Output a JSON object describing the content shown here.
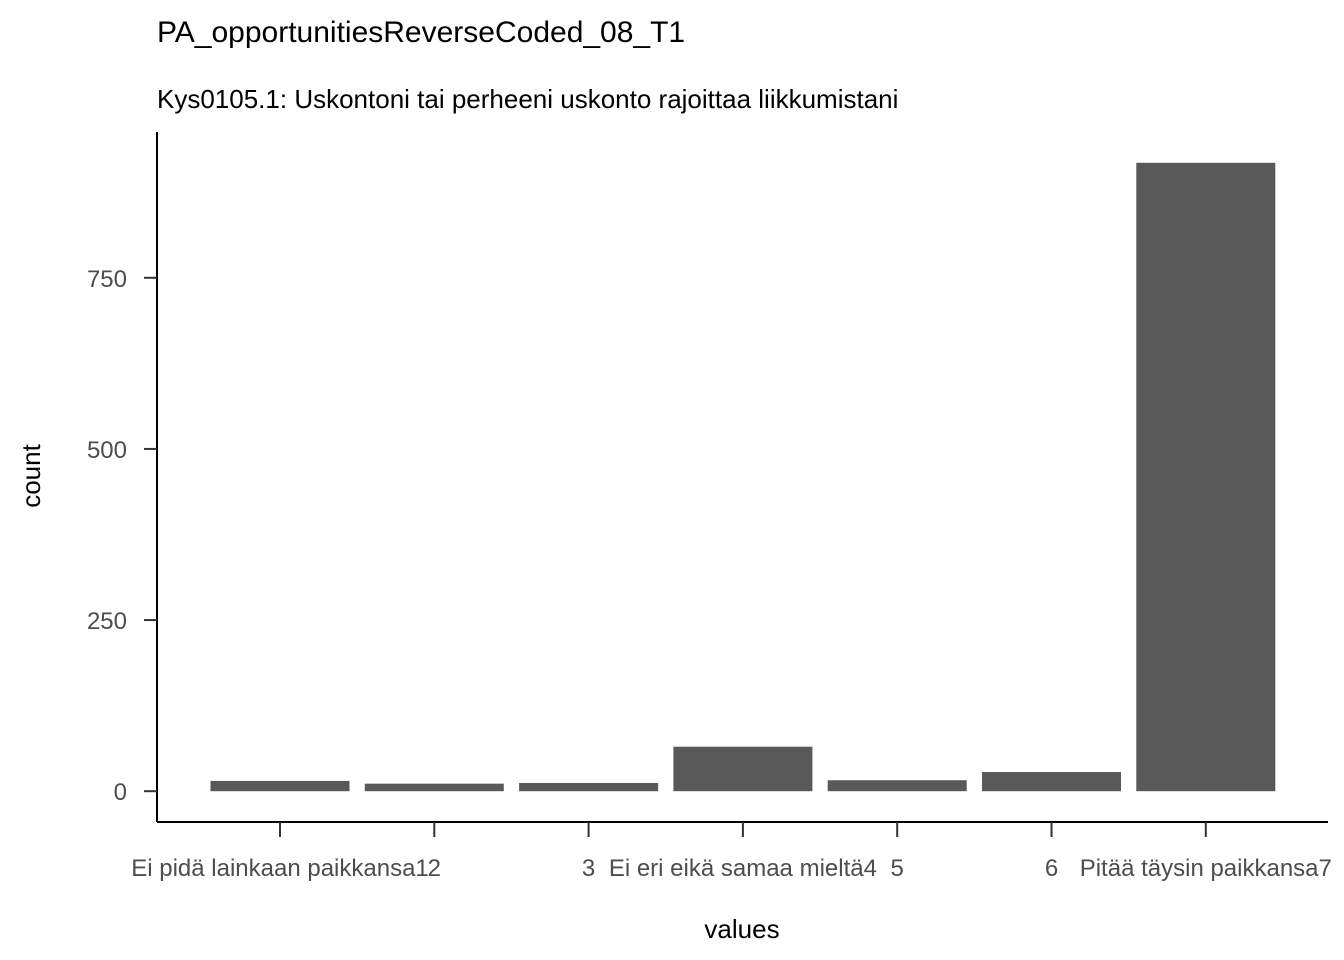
{
  "chart_data": {
    "type": "bar",
    "title": "PA_opportunitiesReverseCoded_08_T1",
    "subtitle": "Kys0105.1: Uskontoni tai perheeni uskonto rajoittaa liikkumistani",
    "xlabel": "values",
    "ylabel": "count",
    "categories": [
      "Ei pidä lainkaan paikkansa1",
      "2",
      "3",
      "Ei eri eikä samaa mieltä4",
      "5",
      "6",
      "Pitää täysin paikkansa7"
    ],
    "x_tick_labels": [
      [
        "Ei pidä lainkaan paikkansa",
        "1"
      ],
      [
        "2"
      ],
      [
        "3"
      ],
      [
        "Ei eri eikä samaa mieltä",
        "4"
      ],
      [
        "5"
      ],
      [
        "6"
      ],
      [
        "Pitää täysin paikkansa",
        "7"
      ]
    ],
    "values": [
      15,
      11,
      12,
      65,
      16,
      28,
      918
    ],
    "ylim": [
      -45,
      963
    ],
    "yticks": [
      0,
      250,
      500,
      750
    ],
    "grid": false,
    "legend": "none"
  }
}
